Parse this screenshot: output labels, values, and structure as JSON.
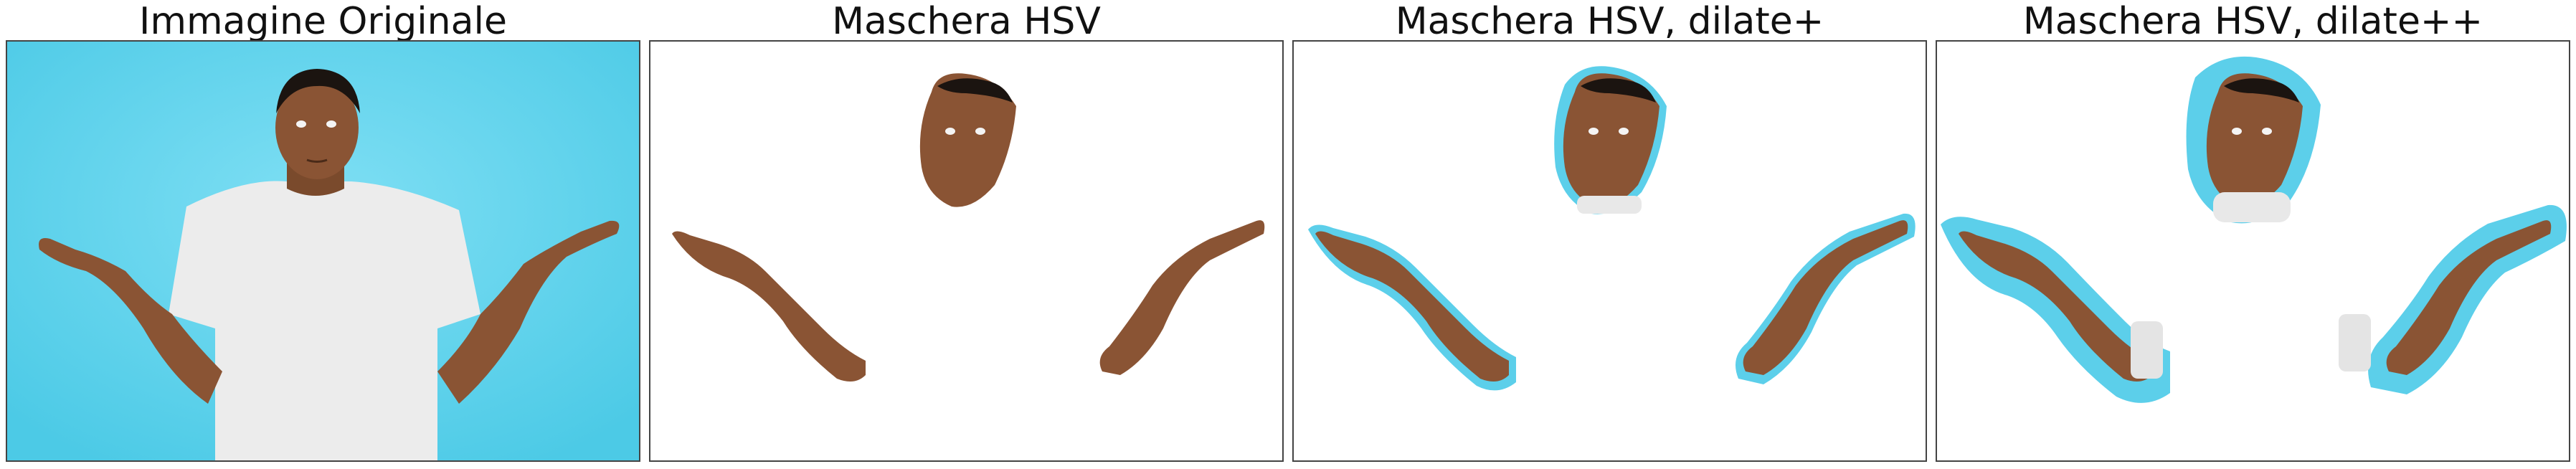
{
  "panels": [
    {
      "title": "Immagine Originale",
      "variant": "original",
      "image": "person-shrugging-photo"
    },
    {
      "title": "Maschera HSV",
      "variant": "mask",
      "image": "hsv-skin-mask"
    },
    {
      "title": "Maschera HSV, dilate+",
      "variant": "dilate1",
      "image": "hsv-skin-mask-dilated"
    },
    {
      "title": "Maschera HSV, dilate++",
      "variant": "dilate2",
      "image": "hsv-skin-mask-dilated-more"
    }
  ],
  "colors": {
    "background_blue": "#5ccfea",
    "skin": "#8a5434",
    "skin_dark": "#5e3620",
    "hair": "#1b1410",
    "shirt": "#eeeeee",
    "frame_border": "#444444"
  }
}
